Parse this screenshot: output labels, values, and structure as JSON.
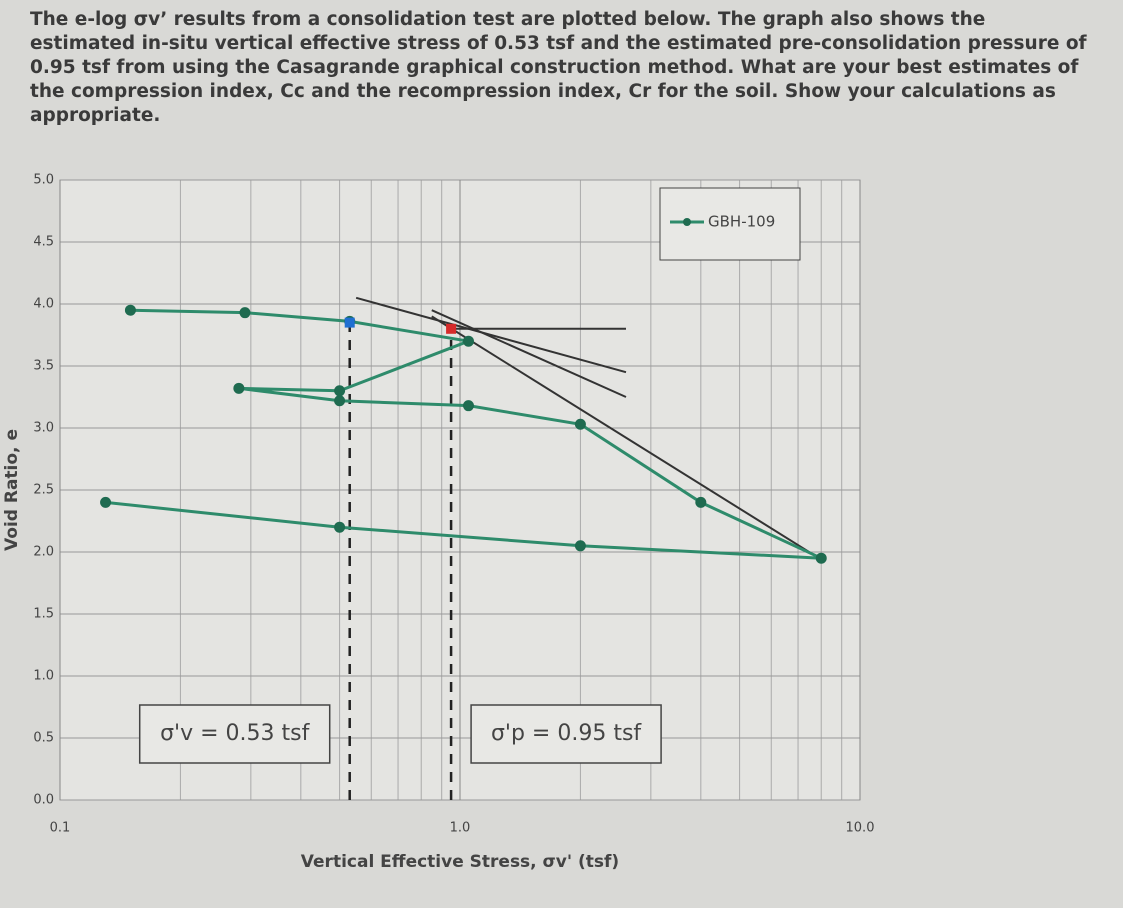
{
  "question": "The e-log σv’ results from a consolidation test are plotted below. The graph also shows the estimated in-situ vertical effective stress of 0.53 tsf and the estimated pre-consolidation pressure of 0.95 tsf from using the Casagrande graphical construction method. What are your best estimates of the compression index, Cc and the recompression index, Cr for the soil. Show your calculations as appropriate.",
  "chart_data": {
    "type": "line",
    "xlabel": "Vertical Effective Stress, σv' (tsf)",
    "ylabel": "Void Ratio, e",
    "x_scale": "log",
    "xlim": [
      0.1,
      10
    ],
    "ylim": [
      0,
      5
    ],
    "xticks": [
      0.1,
      {
        "value": 1,
        "label": "1.0"
      },
      {
        "value": 10,
        "label": "10.0"
      }
    ],
    "x_minor_grid": [
      0.2,
      0.3,
      0.4,
      0.5,
      0.6,
      0.7,
      0.8,
      0.9,
      2,
      3,
      4,
      5,
      6,
      7,
      8,
      9
    ],
    "yticks": [
      {
        "value": 0,
        "label": "0.0"
      },
      0.5,
      {
        "value": 1,
        "label": "1.0"
      },
      1.5,
      {
        "value": 2,
        "label": "2.0"
      },
      2.5,
      {
        "value": 3,
        "label": "3.0"
      },
      3.5,
      {
        "value": 4,
        "label": "4.0"
      },
      4.5,
      {
        "value": 5,
        "label": "5.0"
      }
    ],
    "grid": true,
    "legend": "upper right",
    "series": [
      {
        "name": "GBH-109",
        "color": "#2e8b6b",
        "x": [
          0.15,
          0.29,
          0.53,
          1.05,
          0.5,
          0.28,
          0.5,
          1.05,
          2.0,
          4.0,
          8.0,
          2.0,
          0.5,
          0.13
        ],
        "values": [
          3.95,
          3.93,
          3.86,
          3.7,
          3.3,
          3.32,
          3.22,
          3.18,
          3.03,
          2.4,
          1.95,
          2.05,
          2.2,
          2.4
        ]
      }
    ],
    "construction_lines": [
      {
        "color": "#333333",
        "x": [
          0.95,
          2.6
        ],
        "values": [
          3.8,
          3.8
        ]
      },
      {
        "color": "#333333",
        "x": [
          0.55,
          2.6
        ],
        "values": [
          4.05,
          3.45
        ]
      },
      {
        "color": "#333333",
        "x": [
          0.85,
          2.6
        ],
        "values": [
          3.95,
          3.25
        ]
      },
      {
        "color": "#333333",
        "x": [
          0.85,
          7.9
        ],
        "values": [
          3.9,
          1.95
        ]
      }
    ],
    "markers": [
      {
        "x": 0.53,
        "value": 3.85,
        "color": "#1f6fd1"
      },
      {
        "x": 0.95,
        "value": 3.8,
        "color": "#d62b2b"
      }
    ],
    "vlines": [
      {
        "x": 0.53,
        "top": 3.85,
        "label": "σ'v = 0.53 tsf"
      },
      {
        "x": 0.95,
        "top": 3.8,
        "label": "σ'p = 0.95 tsf"
      }
    ]
  }
}
